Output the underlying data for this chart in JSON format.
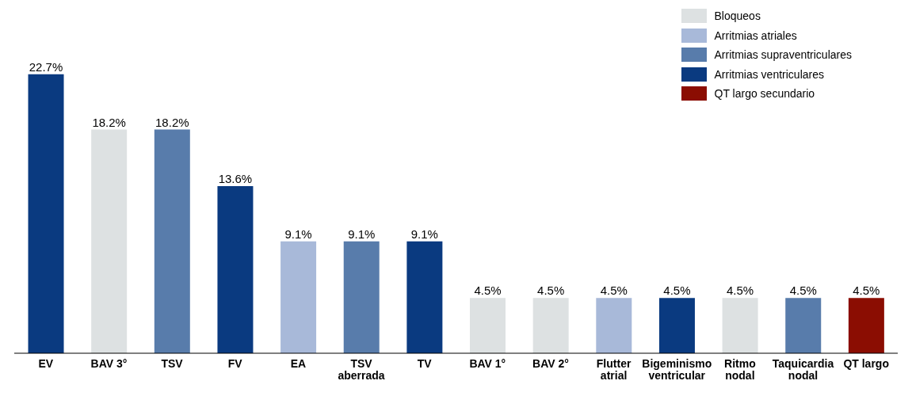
{
  "chart_data": {
    "type": "bar",
    "stacked": true,
    "legend": "top right",
    "data_labels": false,
    "categories": [
      "EV",
      "BAV 3°",
      "TSV",
      "FV",
      "EA",
      "TSV aberrada",
      "TV",
      "BAV 1°",
      "BAV 2°",
      "Flutter atrial",
      "Bigeminismo ventricular",
      "Ritmo nodal",
      "Taquicardia nodal",
      "QT largo"
    ],
    "series": [
      {
        "name": "Bloqueos",
        "color": "#dde1e2",
        "values": [
          null,
          18.2,
          null,
          null,
          null,
          null,
          null,
          4.5,
          4.5,
          null,
          null,
          4.5,
          null,
          null
        ],
        "value_labels": [
          null,
          "18.2%",
          null,
          null,
          null,
          null,
          null,
          "4.5%",
          "4.5%",
          null,
          null,
          "4.5%",
          null,
          null
        ]
      },
      {
        "name": "Arritmias atriales",
        "color": "#a8b9d9",
        "values": [
          null,
          null,
          null,
          null,
          9.1,
          null,
          null,
          null,
          null,
          4.5,
          null,
          null,
          null,
          null
        ],
        "value_labels": [
          null,
          null,
          null,
          null,
          "9.1%",
          null,
          null,
          null,
          null,
          "4.5%",
          null,
          null,
          null,
          null
        ]
      },
      {
        "name": "Arritmias supraventriculares",
        "color": "#587cab",
        "values": [
          null,
          null,
          18.2,
          null,
          null,
          9.1,
          null,
          null,
          null,
          null,
          null,
          null,
          4.5,
          null
        ],
        "value_labels": [
          null,
          null,
          "18.2%",
          null,
          null,
          "9.1%",
          null,
          null,
          null,
          null,
          null,
          null,
          "4.5%",
          null
        ]
      },
      {
        "name": "Arritmias ventriculares",
        "color": "#0a3a80",
        "values": [
          22.7,
          null,
          null,
          13.6,
          null,
          null,
          9.1,
          null,
          null,
          null,
          4.5,
          null,
          null,
          null
        ],
        "value_labels": [
          "22.7%",
          null,
          null,
          "13.6%",
          null,
          null,
          "9.1%",
          null,
          null,
          null,
          "4.5%",
          null,
          null,
          null
        ]
      },
      {
        "name": "QT largo secundario",
        "color": "#8b0d02",
        "values": [
          null,
          null,
          null,
          null,
          null,
          null,
          null,
          null,
          null,
          null,
          null,
          null,
          null,
          4.5
        ],
        "value_labels": [
          null,
          null,
          null,
          null,
          null,
          null,
          null,
          null,
          null,
          null,
          null,
          null,
          null,
          "4.5%"
        ]
      }
    ]
  }
}
